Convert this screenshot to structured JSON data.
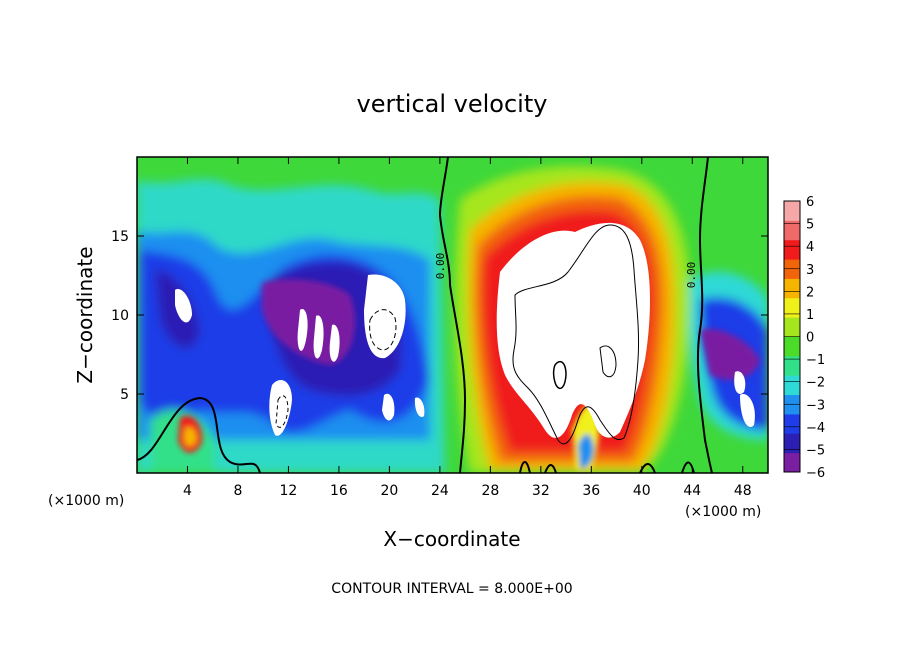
{
  "chart_data": {
    "type": "heatmap",
    "title": "vertical velocity",
    "xlabel": "X−coordinate",
    "ylabel": "Z−coordinate",
    "x_unit": "(×1000 m)",
    "xlim": [
      0,
      50
    ],
    "ylim": [
      0,
      20
    ],
    "x_ticks": [
      4,
      8,
      12,
      16,
      20,
      24,
      28,
      32,
      36,
      40,
      44,
      48
    ],
    "y_ticks": [
      5,
      10,
      15
    ],
    "colorbar": {
      "levels": [
        -6,
        -5,
        -4,
        -3,
        -2,
        -1,
        0,
        1,
        2,
        3,
        4,
        5,
        6
      ],
      "labels": [
        "6",
        "5",
        "4",
        "3",
        "2",
        "1",
        "0",
        "−1",
        "−2",
        "−3",
        "−4",
        "−5",
        "−6"
      ],
      "colors": [
        "#7a1fa2",
        "#2b1fb4",
        "#1e3ce8",
        "#1f8ff0",
        "#2fd9d6",
        "#33e08a",
        "#4bdc2a",
        "#a6e61c",
        "#f0f01a",
        "#f6b400",
        "#f2640a",
        "#f01c1c",
        "#f06a6a",
        "#f6a8a8"
      ],
      "range": [
        -6,
        6
      ]
    },
    "contour_labels": [
      "0.00",
      "0.00"
    ],
    "footer": "CONTOUR INTERVAL = 8.000E+00"
  }
}
